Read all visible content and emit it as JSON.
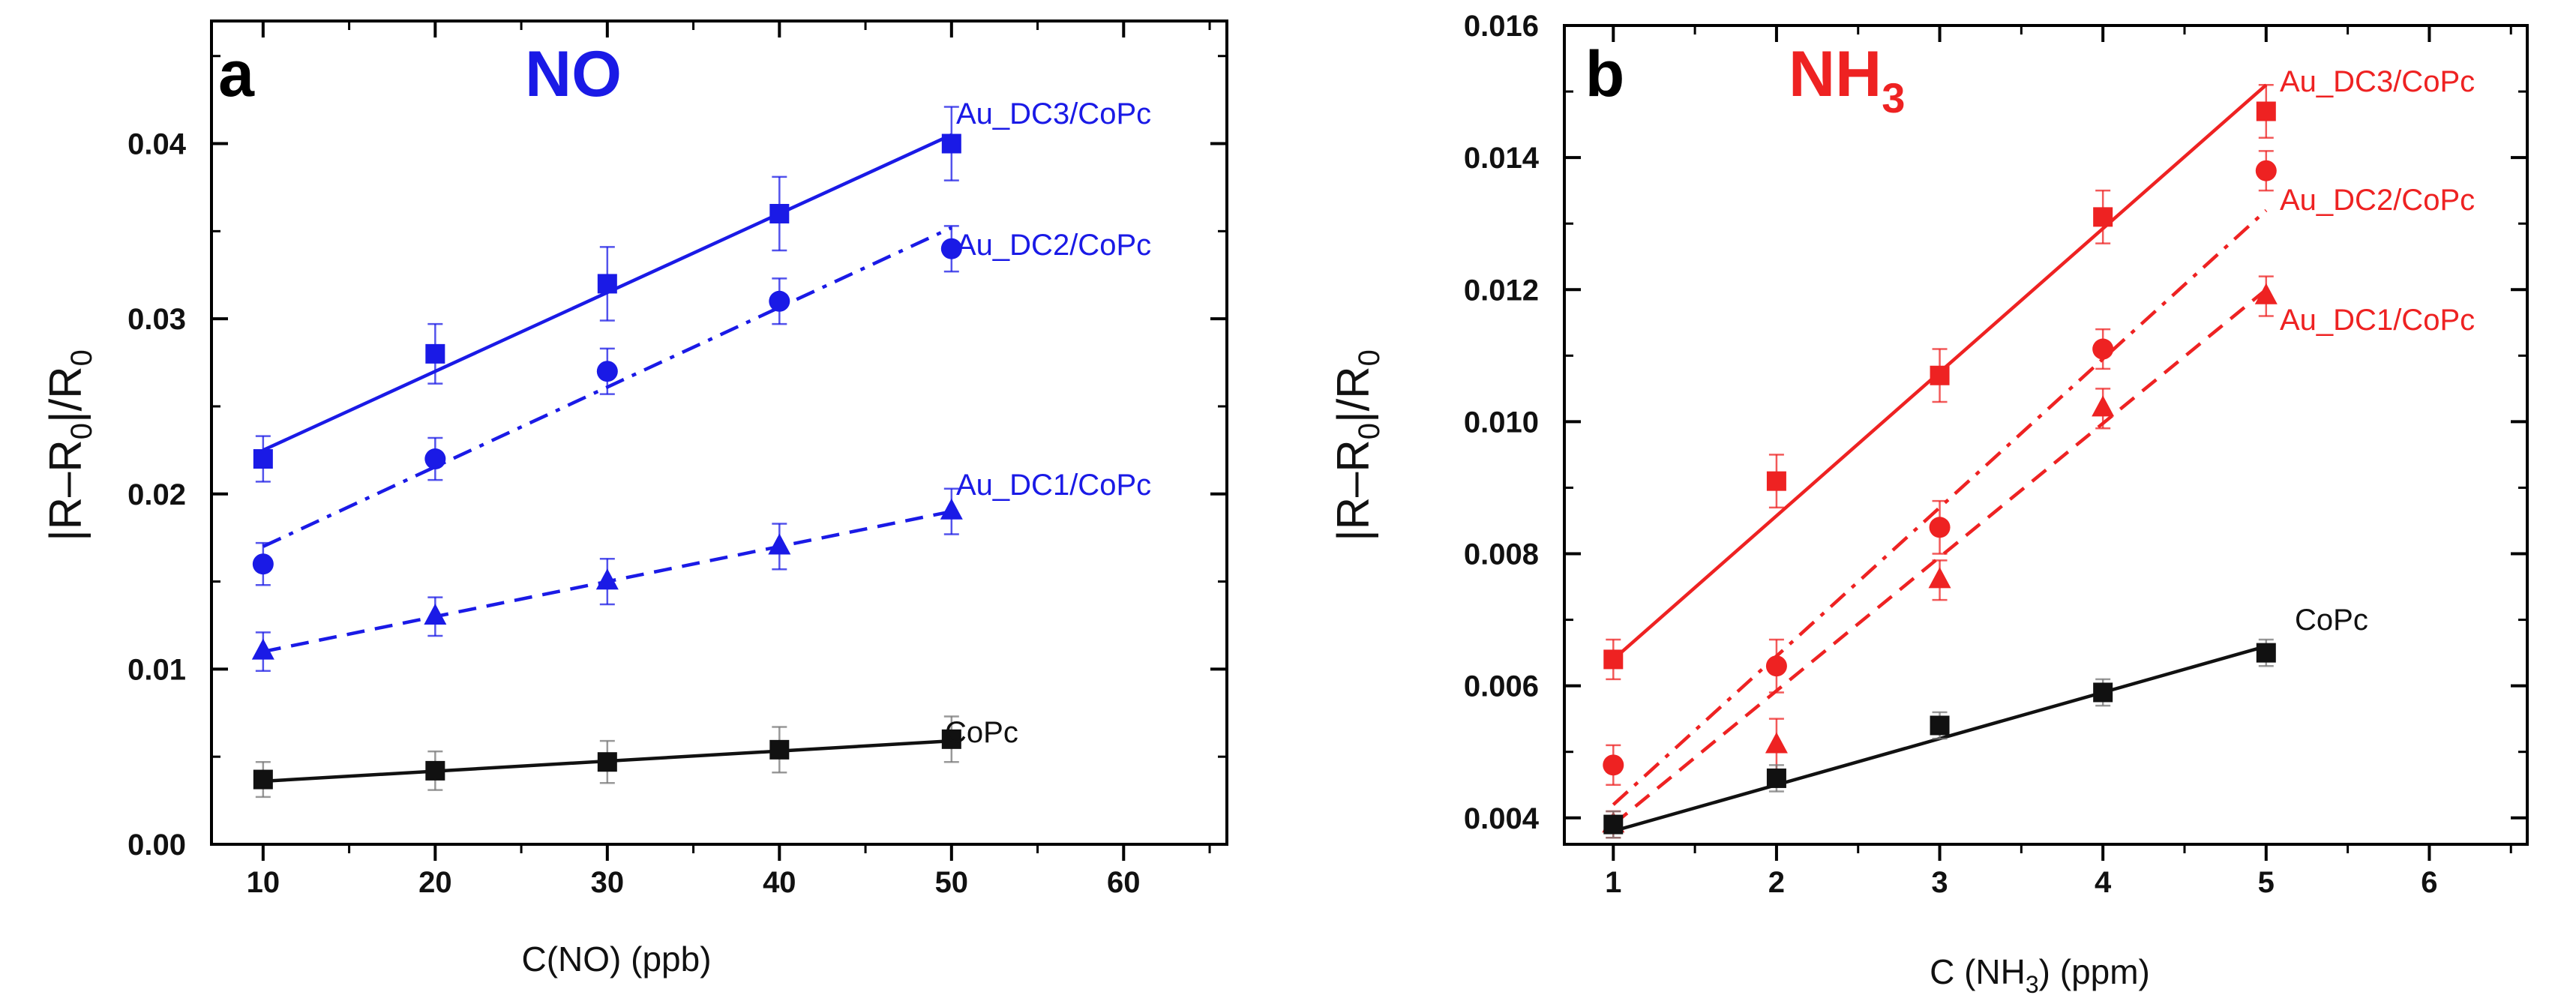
{
  "colors": {
    "blue": "#1a1ae6",
    "red": "#ee2222",
    "black": "#111111"
  },
  "chart_data": [
    {
      "type": "scatter",
      "panel_letter": "a",
      "gas_label": "NO",
      "gas_color": "#1a1ae6",
      "xlabel": "C(NO) (ppb)",
      "ylabel": "|R–R0|/R0",
      "xlim": [
        7,
        66
      ],
      "ylim": [
        0,
        0.047
      ],
      "x_ticks": [
        10,
        20,
        30,
        40,
        50,
        60
      ],
      "x_minor_ticks": [
        15,
        25,
        35,
        45,
        55,
        65
      ],
      "y_ticks": [
        0.0,
        0.01,
        0.02,
        0.03,
        0.04
      ],
      "y_minor_ticks": [
        0.005,
        0.015,
        0.025,
        0.035,
        0.045
      ],
      "x_tick_labels": [
        "10",
        "20",
        "30",
        "40",
        "50",
        "60"
      ],
      "y_tick_labels": [
        "0.00",
        "0.01",
        "0.02",
        "0.03",
        "0.04"
      ],
      "series": [
        {
          "name": "Au_DC3/CoPc",
          "color": "#1a1ae6",
          "marker": "square",
          "line": "solid",
          "x": [
            10,
            20,
            30,
            40,
            50
          ],
          "y": [
            0.022,
            0.028,
            0.032,
            0.036,
            0.04
          ],
          "err": [
            0.0013,
            0.0017,
            0.0021,
            0.0021,
            0.0021
          ],
          "fit": [
            0.0225,
            0.0405
          ]
        },
        {
          "name": "Au_DC2/CoPc",
          "color": "#1a1ae6",
          "marker": "circle",
          "line": "dashdot",
          "x": [
            10,
            20,
            30,
            40,
            50
          ],
          "y": [
            0.016,
            0.022,
            0.027,
            0.031,
            0.034
          ],
          "err": [
            0.0012,
            0.0012,
            0.0013,
            0.0013,
            0.0013
          ],
          "fit": [
            0.017,
            0.0352
          ]
        },
        {
          "name": "Au_DC1/CoPc",
          "color": "#1a1ae6",
          "marker": "triangle",
          "line": "dashed",
          "x": [
            10,
            20,
            30,
            40,
            50
          ],
          "y": [
            0.011,
            0.013,
            0.015,
            0.017,
            0.019
          ],
          "err": [
            0.0011,
            0.0011,
            0.0013,
            0.0013,
            0.0013
          ],
          "fit": [
            0.011,
            0.019
          ]
        },
        {
          "name": "CoPc",
          "color": "#111111",
          "marker": "square",
          "line": "solid",
          "x": [
            10,
            20,
            30,
            40,
            50
          ],
          "y": [
            0.0037,
            0.0042,
            0.0047,
            0.0054,
            0.006
          ],
          "err": [
            0.001,
            0.0011,
            0.0012,
            0.0013,
            0.0013
          ],
          "fit": [
            0.0036,
            0.0059
          ]
        }
      ]
    },
    {
      "type": "scatter",
      "panel_letter": "b",
      "gas_label": "NH",
      "gas_label_sub": "3",
      "gas_color": "#ee2222",
      "xlabel": "C (NH3) (ppm)",
      "ylabel": "|R–R0|/R0",
      "xlim": [
        0.7,
        6.6
      ],
      "ylim": [
        0.0036,
        0.016
      ],
      "x_ticks": [
        1,
        2,
        3,
        4,
        5,
        6
      ],
      "x_minor_ticks": [
        1.5,
        2.5,
        3.5,
        4.5,
        5.5,
        6.5
      ],
      "y_ticks": [
        0.004,
        0.006,
        0.008,
        0.01,
        0.012,
        0.014,
        0.016
      ],
      "y_minor_ticks": [
        0.005,
        0.007,
        0.009,
        0.011,
        0.013,
        0.015
      ],
      "x_tick_labels": [
        "1",
        "2",
        "3",
        "4",
        "5",
        "6"
      ],
      "y_tick_labels": [
        "0.004",
        "0.006",
        "0.008",
        "0.010",
        "0.012",
        "0.014",
        "0.016"
      ],
      "series": [
        {
          "name": "Au_DC3/CoPc",
          "color": "#ee2222",
          "marker": "square",
          "line": "solid",
          "x": [
            1,
            2,
            3,
            4,
            5
          ],
          "y": [
            0.0064,
            0.0091,
            0.0107,
            0.0131,
            0.0147
          ],
          "err": [
            0.0003,
            0.0004,
            0.0004,
            0.0004,
            0.0004
          ],
          "fit": [
            0.0064,
            0.0151
          ]
        },
        {
          "name": "Au_DC2/CoPc",
          "color": "#ee2222",
          "marker": "circle",
          "line": "dashdot",
          "x": [
            1,
            2,
            3,
            4,
            5
          ],
          "y": [
            0.0048,
            0.0063,
            0.0084,
            0.0111,
            0.0138
          ],
          "err": [
            0.0003,
            0.0004,
            0.0004,
            0.0003,
            0.0003
          ],
          "fit": [
            0.0042,
            0.0132
          ]
        },
        {
          "name": "Au_DC1/CoPc",
          "color": "#ee2222",
          "marker": "triangle",
          "line": "dashed",
          "x": [
            1,
            2,
            3,
            4,
            5
          ],
          "y": [
            0.0039,
            0.0051,
            0.0076,
            0.0102,
            0.0119
          ],
          "err": [
            0.0002,
            0.0004,
            0.0003,
            0.0003,
            0.0003
          ],
          "fit": [
            0.0039,
            0.012
          ]
        },
        {
          "name": "CoPc",
          "color": "#111111",
          "marker": "square",
          "line": "solid",
          "x": [
            1,
            2,
            3,
            4,
            5
          ],
          "y": [
            0.0039,
            0.0046,
            0.0054,
            0.0059,
            0.0065
          ],
          "err": [
            0.0002,
            0.0002,
            0.0002,
            0.0002,
            0.0002
          ],
          "fit": [
            0.0038,
            0.0066
          ]
        }
      ]
    }
  ]
}
